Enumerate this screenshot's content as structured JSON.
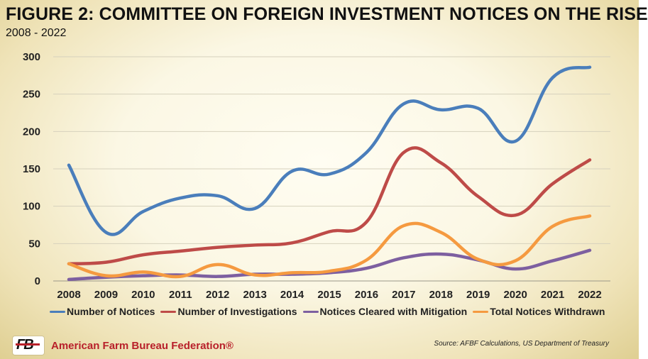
{
  "header": {
    "title": "FIGURE 2: COMMITTEE ON FOREIGN INVESTMENT NOTICES ON THE RISE",
    "subtitle": "2008 - 2022"
  },
  "chart_data": {
    "type": "line",
    "title": "FIGURE 2: COMMITTEE ON FOREIGN INVESTMENT NOTICES ON THE RISE",
    "subtitle": "2008 - 2022",
    "xlabel": "",
    "ylabel": "",
    "ylim": [
      0,
      300
    ],
    "yticks": [
      0,
      50,
      100,
      150,
      200,
      250,
      300
    ],
    "grid": true,
    "smooth": true,
    "legend_position": "bottom",
    "categories": [
      "2008",
      "2009",
      "2010",
      "2011",
      "2012",
      "2013",
      "2014",
      "2015",
      "2016",
      "2017",
      "2018",
      "2019",
      "2020",
      "2021",
      "2022"
    ],
    "series": [
      {
        "name": "Number of Notices",
        "color": "#4a7ebb",
        "values": [
          155,
          65,
          93,
          111,
          114,
          97,
          147,
          143,
          172,
          237,
          229,
          231,
          187,
          272,
          286
        ]
      },
      {
        "name": "Number of Investigations",
        "color": "#be4b48",
        "values": [
          23,
          25,
          35,
          40,
          45,
          48,
          51,
          66,
          79,
          172,
          158,
          113,
          88,
          130,
          162
        ]
      },
      {
        "name": "Notices Cleared with Mitigation",
        "color": "#7d5fa0",
        "values": [
          2,
          5,
          7,
          8,
          6,
          9,
          9,
          11,
          17,
          31,
          36,
          28,
          16,
          27,
          41
        ]
      },
      {
        "name": "Total Notices Withdrawn",
        "color": "#f59a40",
        "values": [
          23,
          7,
          12,
          6,
          22,
          8,
          11,
          13,
          28,
          74,
          65,
          29,
          27,
          73,
          87
        ]
      }
    ]
  },
  "footer": {
    "logo_text": "FB",
    "organization": "American Farm Bureau Federation®",
    "source": "Source: AFBF Calculations, US Department of Treasury"
  }
}
